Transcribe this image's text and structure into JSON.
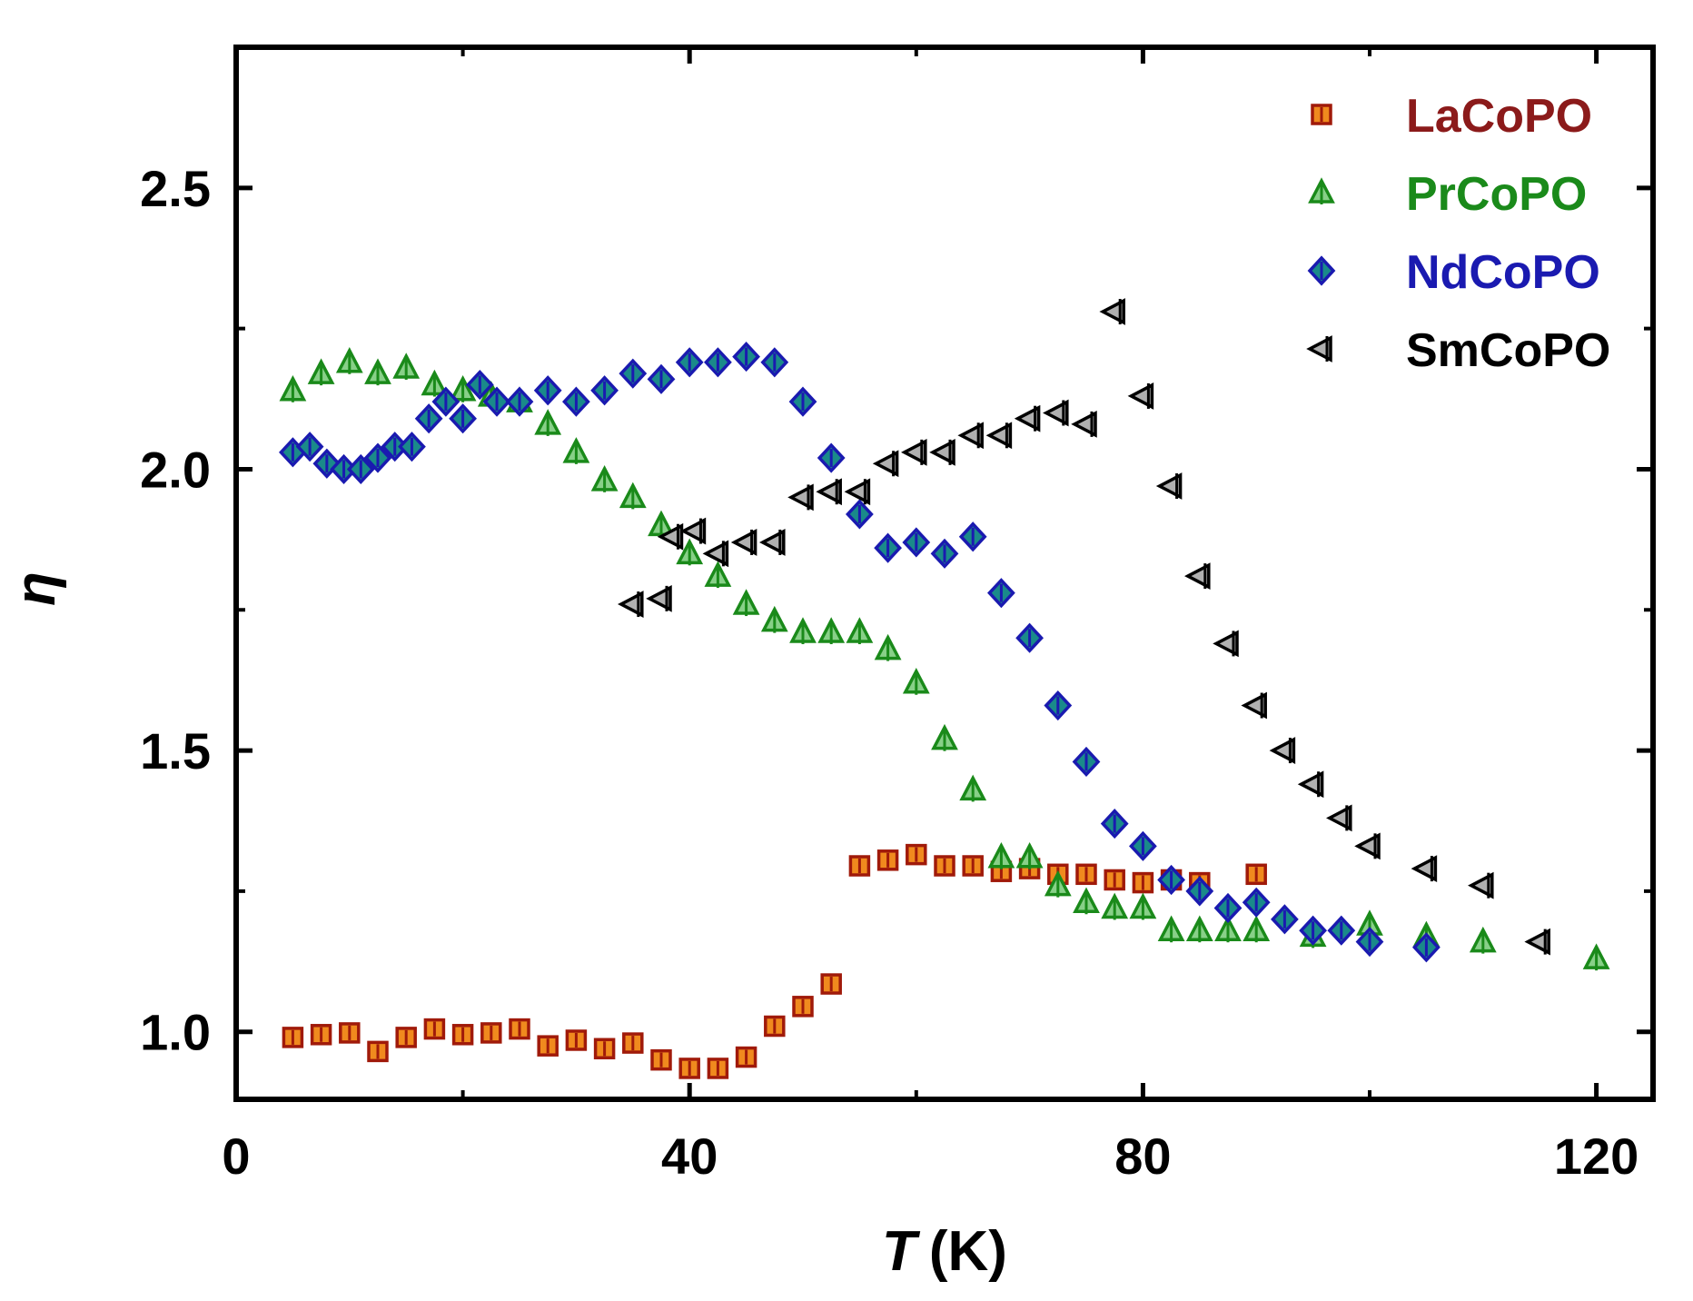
{
  "chart_data": {
    "type": "scatter",
    "title": "",
    "xlabel": "T (K)",
    "xlabel_italic": "T",
    "xlabel_unit": "(K)",
    "ylabel": "η",
    "xlim": [
      0,
      125
    ],
    "ylim": [
      0.88,
      2.75
    ],
    "xticks": [
      "0",
      "40",
      "80",
      "120"
    ],
    "xtick_values": [
      0,
      40,
      80,
      120
    ],
    "yticks": [
      "1.0",
      "1.5",
      "2.0",
      "2.5"
    ],
    "ytick_values": [
      1.0,
      1.5,
      2.0,
      2.5
    ],
    "legend_position": "top-right",
    "grid": false,
    "series": [
      {
        "name": "LaCoPO",
        "marker": "square",
        "fill": "#f08a1e",
        "stroke": "#a01a0a",
        "label_color": "#8b1a1a",
        "x": [
          5,
          7.5,
          10,
          12.5,
          15,
          17.5,
          20,
          22.5,
          25,
          27.5,
          30,
          32.5,
          35,
          37.5,
          40,
          42.5,
          45,
          47.5,
          50,
          52.5,
          55,
          57.5,
          60,
          62.5,
          65,
          67.5,
          70,
          72.5,
          75,
          77.5,
          80,
          82.5,
          85,
          90
        ],
        "y": [
          0.99,
          0.995,
          0.998,
          0.965,
          0.99,
          1.005,
          0.995,
          0.998,
          1.005,
          0.975,
          0.985,
          0.97,
          0.98,
          0.95,
          0.935,
          0.935,
          0.955,
          1.01,
          1.045,
          1.085,
          1.295,
          1.305,
          1.315,
          1.295,
          1.295,
          1.285,
          1.29,
          1.28,
          1.28,
          1.27,
          1.265,
          1.27,
          1.265,
          1.28
        ]
      },
      {
        "name": "PrCoPO",
        "marker": "triangle-up",
        "fill": "#88d088",
        "stroke": "#1a8a1a",
        "label_color": "#1a8a1a",
        "x": [
          5,
          7.5,
          10,
          12.5,
          15,
          17.5,
          20,
          22.5,
          25,
          27.5,
          30,
          32.5,
          35,
          37.5,
          40,
          42.5,
          45,
          47.5,
          50,
          52.5,
          55,
          57.5,
          60,
          62.5,
          65,
          67.5,
          70,
          72.5,
          75,
          77.5,
          80,
          82.5,
          85,
          87.5,
          90,
          95,
          100,
          105,
          110,
          120
        ],
        "y": [
          2.14,
          2.17,
          2.19,
          2.17,
          2.18,
          2.15,
          2.14,
          2.13,
          2.12,
          2.08,
          2.03,
          1.98,
          1.95,
          1.9,
          1.85,
          1.81,
          1.76,
          1.73,
          1.71,
          1.71,
          1.71,
          1.68,
          1.62,
          1.52,
          1.43,
          1.31,
          1.31,
          1.26,
          1.23,
          1.22,
          1.22,
          1.18,
          1.18,
          1.18,
          1.18,
          1.17,
          1.19,
          1.17,
          1.16,
          1.13
        ]
      },
      {
        "name": "NdCoPO",
        "marker": "diamond",
        "fill": "#1a8a8a",
        "stroke": "#1a1ab0",
        "label_color": "#1a1ab0",
        "x": [
          5,
          6.5,
          8,
          9.5,
          11,
          12.5,
          14,
          15.5,
          17,
          18.5,
          20,
          21.5,
          23,
          25,
          27.5,
          30,
          32.5,
          35,
          37.5,
          40,
          42.5,
          45,
          47.5,
          50,
          52.5,
          55,
          57.5,
          60,
          62.5,
          65,
          67.5,
          70,
          72.5,
          75,
          77.5,
          80,
          82.5,
          85,
          87.5,
          90,
          92.5,
          95,
          97.5,
          100,
          105
        ],
        "y": [
          2.03,
          2.04,
          2.01,
          2.0,
          2.0,
          2.02,
          2.04,
          2.04,
          2.09,
          2.12,
          2.09,
          2.15,
          2.12,
          2.12,
          2.14,
          2.12,
          2.14,
          2.17,
          2.16,
          2.19,
          2.19,
          2.2,
          2.19,
          2.12,
          2.02,
          1.92,
          1.86,
          1.87,
          1.85,
          1.88,
          1.78,
          1.7,
          1.58,
          1.48,
          1.37,
          1.33,
          1.27,
          1.25,
          1.22,
          1.23,
          1.2,
          1.18,
          1.18,
          1.16,
          1.15
        ]
      },
      {
        "name": "SmCoPO",
        "marker": "triangle-left",
        "fill": "#b0b0b0",
        "stroke": "#000000",
        "label_color": "#000000",
        "x": [
          35,
          37.5,
          38.5,
          40.5,
          42.5,
          45,
          47.5,
          50,
          52.5,
          55,
          57.5,
          60,
          62.5,
          65,
          67.5,
          70,
          72.5,
          75,
          77.5,
          80,
          82.5,
          85,
          87.5,
          90,
          92.5,
          95,
          97.5,
          100,
          105,
          110,
          115
        ],
        "y": [
          1.76,
          1.77,
          1.88,
          1.89,
          1.85,
          1.87,
          1.87,
          1.95,
          1.96,
          1.96,
          2.01,
          2.03,
          2.03,
          2.06,
          2.06,
          2.09,
          2.1,
          2.08,
          2.28,
          2.13,
          1.97,
          1.81,
          1.69,
          1.58,
          1.5,
          1.44,
          1.38,
          1.33,
          1.29,
          1.26,
          1.16
        ]
      }
    ]
  }
}
